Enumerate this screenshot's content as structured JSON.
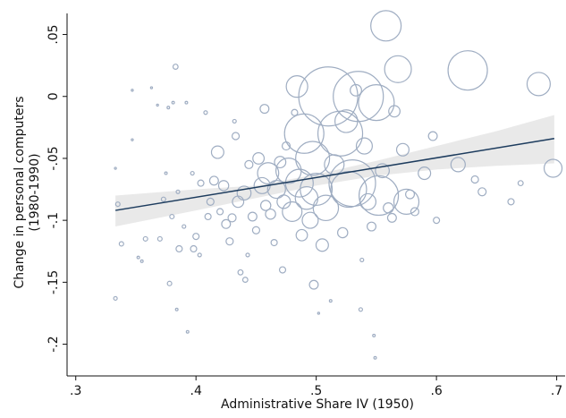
{
  "chart_data": {
    "type": "scatter",
    "xlabel": "Administrative Share IV (1950)",
    "ylabel": [
      "Change in personal computers",
      "(1980-1990)"
    ],
    "xlim": [
      0.295,
      0.707
    ],
    "ylim": [
      -0.222,
      0.067
    ],
    "xticks": [
      {
        "value": 0.3,
        "label": ".3"
      },
      {
        "value": 0.4,
        "label": ".4"
      },
      {
        "value": 0.5,
        "label": ".5"
      },
      {
        "value": 0.6,
        "label": ".6"
      },
      {
        "value": 0.7,
        "label": ".7"
      }
    ],
    "yticks": [
      {
        "value": 0.05,
        "label": ".05"
      },
      0,
      {
        "value": -0.05,
        "label": "-.05"
      },
      {
        "value": -0.1,
        "label": "-.1"
      },
      {
        "value": -0.15,
        "label": "-.15"
      },
      {
        "value": -0.2,
        "label": "-.2"
      }
    ],
    "color": "#9fadc2",
    "fit_color": "#1d3c5e",
    "band_color": "#e4e4e4",
    "x": [
      0.333,
      0.335,
      0.338,
      0.333,
      0.347,
      0.347,
      0.352,
      0.355,
      0.358,
      0.363,
      0.368,
      0.37,
      0.373,
      0.375,
      0.377,
      0.378,
      0.38,
      0.381,
      0.383,
      0.386,
      0.385,
      0.384,
      0.39,
      0.392,
      0.393,
      0.397,
      0.398,
      0.4,
      0.403,
      0.404,
      0.408,
      0.41,
      0.412,
      0.415,
      0.418,
      0.42,
      0.423,
      0.425,
      0.428,
      0.43,
      0.432,
      0.433,
      0.435,
      0.437,
      0.44,
      0.441,
      0.443,
      0.444,
      0.447,
      0.45,
      0.452,
      0.455,
      0.457,
      0.458,
      0.46,
      0.462,
      0.465,
      0.467,
      0.47,
      0.472,
      0.473,
      0.475,
      0.477,
      0.48,
      0.482,
      0.484,
      0.486,
      0.488,
      0.49,
      0.492,
      0.495,
      0.497,
      0.498,
      0.5,
      0.502,
      0.505,
      0.508,
      0.51,
      0.512,
      0.515,
      0.52,
      0.522,
      0.525,
      0.527,
      0.53,
      0.533,
      0.535,
      0.537,
      0.538,
      0.54,
      0.543,
      0.546,
      0.548,
      0.549,
      0.55,
      0.552,
      0.555,
      0.558,
      0.56,
      0.563,
      0.565,
      0.568,
      0.572,
      0.575,
      0.578,
      0.582,
      0.59,
      0.597,
      0.6,
      0.618,
      0.626,
      0.632,
      0.638,
      0.662,
      0.67,
      0.685,
      0.697
    ],
    "values": [
      -0.163,
      -0.087,
      -0.119,
      -0.058,
      0.005,
      -0.035,
      -0.13,
      -0.133,
      -0.115,
      0.007,
      -0.007,
      -0.115,
      -0.083,
      -0.062,
      -0.009,
      -0.151,
      -0.097,
      -0.005,
      0.024,
      -0.123,
      -0.077,
      -0.172,
      -0.105,
      -0.005,
      -0.19,
      -0.062,
      -0.123,
      -0.113,
      -0.128,
      -0.07,
      -0.013,
      -0.097,
      -0.085,
      -0.068,
      -0.045,
      -0.093,
      -0.072,
      -0.103,
      -0.117,
      -0.098,
      -0.02,
      -0.032,
      -0.085,
      -0.142,
      -0.078,
      -0.148,
      -0.128,
      -0.055,
      -0.097,
      -0.108,
      -0.05,
      -0.072,
      -0.01,
      -0.088,
      -0.062,
      -0.095,
      -0.118,
      -0.075,
      -0.053,
      -0.14,
      -0.085,
      -0.04,
      -0.06,
      -0.093,
      -0.013,
      0.008,
      -0.07,
      -0.112,
      -0.03,
      -0.082,
      -0.1,
      -0.05,
      -0.152,
      -0.075,
      -0.175,
      -0.12,
      -0.09,
      0.0,
      -0.165,
      -0.055,
      -0.03,
      -0.11,
      -0.02,
      -0.075,
      -0.07,
      0.005,
      0.0,
      -0.172,
      -0.132,
      -0.04,
      -0.085,
      -0.105,
      -0.193,
      -0.211,
      -0.005,
      -0.08,
      -0.06,
      0.057,
      -0.09,
      -0.098,
      -0.012,
      0.022,
      -0.043,
      -0.085,
      -0.079,
      -0.093,
      -0.062,
      -0.032,
      -0.1,
      -0.055,
      0.021,
      -0.067,
      -0.077,
      -0.085,
      -0.07,
      0.01,
      -0.058
    ],
    "sizes": [
      1,
      1.5,
      1.5,
      0.3,
      0.3,
      0.3,
      0.5,
      0.5,
      1.5,
      0.3,
      0.3,
      1.5,
      1.5,
      0.5,
      0.5,
      1.5,
      1.5,
      0.5,
      2,
      3,
      1,
      0.5,
      1,
      0.5,
      0.5,
      1,
      3,
      3,
      1,
      3,
      1,
      3,
      4,
      6,
      12,
      3,
      8,
      6,
      4,
      5,
      1,
      4,
      10,
      2,
      15,
      2,
      1,
      5,
      6,
      4,
      10,
      20,
      6,
      8,
      35,
      8,
      3,
      25,
      10,
      3,
      14,
      5,
      50,
      30,
      3,
      36,
      60,
      10,
      121,
      40,
      20,
      90,
      6,
      80,
      0.3,
      12,
      50,
      272,
      0.5,
      30,
      156,
      8,
      40,
      100,
      169,
      10,
      196,
      1,
      1,
      20,
      20,
      6,
      0.5,
      0.5,
      100,
      121,
      15,
      72,
      8,
      6,
      10,
      56,
      12,
      49,
      6,
      5,
      12,
      6,
      3,
      16,
      121,
      4,
      5,
      3,
      2,
      42,
      25
    ],
    "fit": {
      "x": [
        0.333,
        0.698
      ],
      "values": [
        -0.092,
        -0.034
      ]
    },
    "band": {
      "x": [
        0.333,
        0.4,
        0.45,
        0.5,
        0.55,
        0.6,
        0.65,
        0.698
      ],
      "upper": [
        -0.08,
        -0.075,
        -0.072,
        -0.063,
        -0.052,
        -0.04,
        -0.028,
        -0.015
      ],
      "lower": [
        -0.105,
        -0.092,
        -0.082,
        -0.072,
        -0.064,
        -0.059,
        -0.056,
        -0.054
      ]
    }
  }
}
